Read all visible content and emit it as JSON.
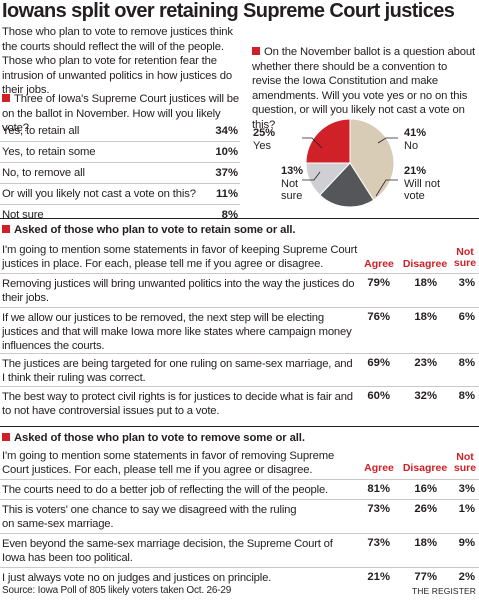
{
  "headline": "Iowans split over retaining Supreme Court justices",
  "intro": "Those who plan to vote to remove justices think the courts should reflect the will of the people. Those who plan to vote for retention fear the intrusion of unwanted politics in how justices do their jobs.",
  "colors": {
    "accent": "#cf2027",
    "pie_yes": "#d12128",
    "pie_no": "#d8ccb7",
    "pie_will_not": "#55565a",
    "pie_not_sure": "#cfcfd4"
  },
  "q1": {
    "question": "Three of Iowa's Supreme Court justices will be on the ballot in November. How will you likely vote?",
    "rows": [
      {
        "label": "Yes, to retain all",
        "value": "34%"
      },
      {
        "label": "Yes, to retain some",
        "value": "10%"
      },
      {
        "label": "No, to remove all",
        "value": "37%"
      },
      {
        "label": "Or will you likely not cast a vote on this?",
        "value": "11%"
      },
      {
        "label": "Not sure",
        "value": "8%"
      }
    ]
  },
  "q2": {
    "question": "On the November ballot is a question about whether there should be a convention to revise the Iowa Constitution and make amendments. Will you vote yes or no on this question, or will you likely not cast a vote on this?",
    "labels": {
      "yes_pct": "25%",
      "yes": "Yes",
      "no_pct": "41%",
      "no": "No",
      "notsure_pct": "13%",
      "notsure_1": "Not",
      "notsure_2": "sure",
      "willnot_pct": "21%",
      "willnot_1": "Will not",
      "willnot_2": "vote"
    }
  },
  "chart_data": [
    {
      "type": "table",
      "title": "Three of Iowa's Supreme Court justices will be on the ballot in November. How will you likely vote?",
      "categories": [
        "Yes, to retain all",
        "Yes, to retain some",
        "No, to remove all",
        "Or will you likely not cast a vote on this?",
        "Not sure"
      ],
      "values": [
        34,
        10,
        37,
        11,
        8
      ]
    },
    {
      "type": "pie",
      "title": "On the November ballot is a question about whether there should be a convention to revise the Iowa Constitution and make amendments.",
      "categories": [
        "No",
        "Will not vote",
        "Not sure",
        "Yes"
      ],
      "values": [
        41,
        21,
        13,
        25
      ]
    },
    {
      "type": "table",
      "title": "Asked of those who plan to vote to retain some or all.",
      "columns": [
        "Agree",
        "Disagree",
        "Not sure"
      ],
      "rows": [
        {
          "statement": "Removing justices will bring unwanted politics into the way the justices do their jobs.",
          "values": [
            79,
            18,
            3
          ]
        },
        {
          "statement": "If we allow our justices to be removed, the next step will be electing justices and that will make Iowa more like states where campaign money influences the courts.",
          "values": [
            76,
            18,
            6
          ]
        },
        {
          "statement": "The justices are being targeted for one ruling on same-sex marriage, and I think their ruling was correct.",
          "values": [
            69,
            23,
            8
          ]
        },
        {
          "statement": "The best way to protect civil rights is for justices to decide what is fair and to not have controversial issues put to a vote.",
          "values": [
            60,
            32,
            8
          ]
        }
      ]
    },
    {
      "type": "table",
      "title": "Asked of those who plan to vote to remove some or all.",
      "columns": [
        "Agree",
        "Disagree",
        "Not sure"
      ],
      "rows": [
        {
          "statement": "The courts need to do a better job of reflecting the will of the people.",
          "values": [
            81,
            16,
            3
          ]
        },
        {
          "statement": "This is voters' one chance to say we disagreed with the ruling on same-sex marriage.",
          "values": [
            73,
            26,
            1
          ]
        },
        {
          "statement": "Even beyond the same-sex marriage decision, the Supreme Court of Iowa has been too political.",
          "values": [
            73,
            18,
            9
          ]
        },
        {
          "statement": "I just always vote no on judges and justices on principle.",
          "values": [
            21,
            77,
            2
          ]
        }
      ]
    }
  ],
  "retain": {
    "heading": "Asked of those who plan to vote to retain some or all.",
    "intro": "I'm going to mention some statements in favor of keeping Supreme Court justices in place. For each, please tell me if you agree or disagree.",
    "headers": {
      "agree": "Agree",
      "disagree": "Disagree",
      "notsure_1": "Not",
      "notsure_2": "sure"
    },
    "rows": [
      {
        "statement": "Removing justices will bring unwanted politics into the way the justices do their jobs.",
        "agree": "79%",
        "disagree": "18%",
        "notsure": "3%"
      },
      {
        "statement": "If we allow our justices to be removed, the next step will be electing justices and that will make Iowa more like states where campaign money influences the courts.",
        "agree": "76%",
        "disagree": "18%",
        "notsure": "6%"
      },
      {
        "statement": "The justices are being targeted for one ruling on same-sex marriage, and I think their ruling was correct.",
        "agree": "69%",
        "disagree": "23%",
        "notsure": "8%"
      },
      {
        "statement": "The best way to protect civil rights is for justices to decide what is fair and to not have controversial issues put to a vote.",
        "agree": "60%",
        "disagree": "32%",
        "notsure": "8%"
      }
    ]
  },
  "remove": {
    "heading": "Asked of those who plan to vote to remove some or all.",
    "intro": "I'm going to mention some statements in favor of removing Supreme Court justices. For each, please tell me if you agree or disagree.",
    "headers": {
      "agree": "Agree",
      "disagree": "Disagree",
      "notsure_1": "Not",
      "notsure_2": "sure"
    },
    "rows": [
      {
        "statement": "The courts need to do a better job of reflecting the will of the people.",
        "agree": "81%",
        "disagree": "16%",
        "notsure": "3%"
      },
      {
        "statement": "This is voters' one chance to say we disagreed with the ruling on same-sex marriage.",
        "agree": "73%",
        "disagree": "26%",
        "notsure": "1%"
      },
      {
        "statement": "Even beyond the same-sex marriage decision, the Supreme Court of Iowa has been too political.",
        "agree": "73%",
        "disagree": "18%",
        "notsure": "9%"
      },
      {
        "statement": "I just always vote no on judges and justices on principle.",
        "agree": "21%",
        "disagree": "77%",
        "notsure": "2%"
      }
    ]
  },
  "source": "Source: Iowa Poll of 805 likely voters taken Oct. 26-29",
  "credit": "THE REGISTER"
}
